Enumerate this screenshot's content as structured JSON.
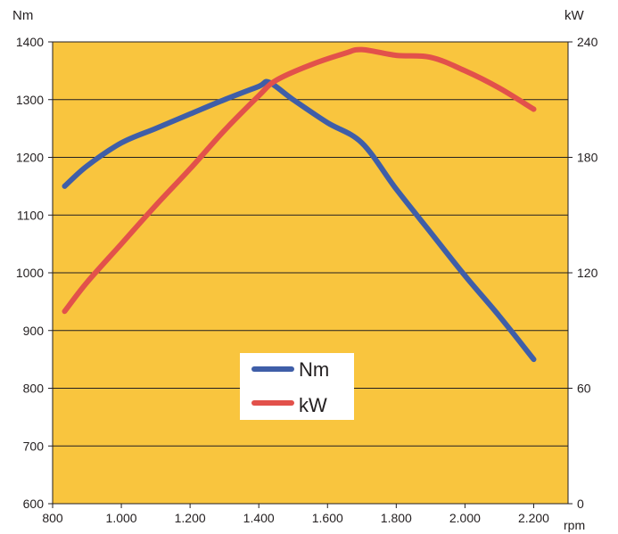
{
  "chart_data": {
    "type": "line",
    "title": "",
    "xlabel": "rpm",
    "ylabel_left": "Nm",
    "ylabel_right": "kW",
    "xlim": [
      800,
      2300
    ],
    "ylim_left": [
      600,
      1400
    ],
    "ylim_right": [
      0,
      240
    ],
    "x_ticks": [
      800,
      1000,
      1200,
      1400,
      1600,
      1800,
      2000,
      2200
    ],
    "x_tick_labels": [
      "800",
      "1.000",
      "1.200",
      "1.400",
      "1.600",
      "1.800",
      "2.000",
      "2.200"
    ],
    "y_left_ticks": [
      600,
      700,
      800,
      900,
      1000,
      1100,
      1200,
      1300,
      1400
    ],
    "y_left_tick_labels": [
      "600",
      "700",
      "800",
      "900",
      "1000",
      "1100",
      "1200",
      "1300",
      "1400"
    ],
    "y_right_ticks": [
      0,
      60,
      120,
      180,
      240
    ],
    "y_right_tick_labels": [
      "0",
      "60",
      "120",
      "180",
      "240"
    ],
    "grid": true,
    "legend_position": "lower-center",
    "background_color": "#f9c53e",
    "series": [
      {
        "name": "Nm",
        "axis": "left",
        "color": "#3f5ea8",
        "x": [
          835,
          900,
          1000,
          1100,
          1200,
          1300,
          1400,
          1430,
          1500,
          1600,
          1700,
          1800,
          1900,
          2000,
          2100,
          2200
        ],
        "values": [
          1150,
          1185,
          1225,
          1250,
          1275,
          1300,
          1323,
          1330,
          1300,
          1260,
          1225,
          1145,
          1070,
          995,
          925,
          850
        ]
      },
      {
        "name": "kW",
        "axis": "right",
        "color": "#e2514b",
        "x": [
          835,
          900,
          1000,
          1100,
          1200,
          1300,
          1400,
          1450,
          1550,
          1650,
          1700,
          1800,
          1900,
          2000,
          2100,
          2200
        ],
        "values": [
          100,
          115,
          135,
          155,
          174,
          194,
          212,
          220,
          228,
          234,
          236,
          233,
          232,
          225,
          216,
          205
        ]
      }
    ]
  }
}
